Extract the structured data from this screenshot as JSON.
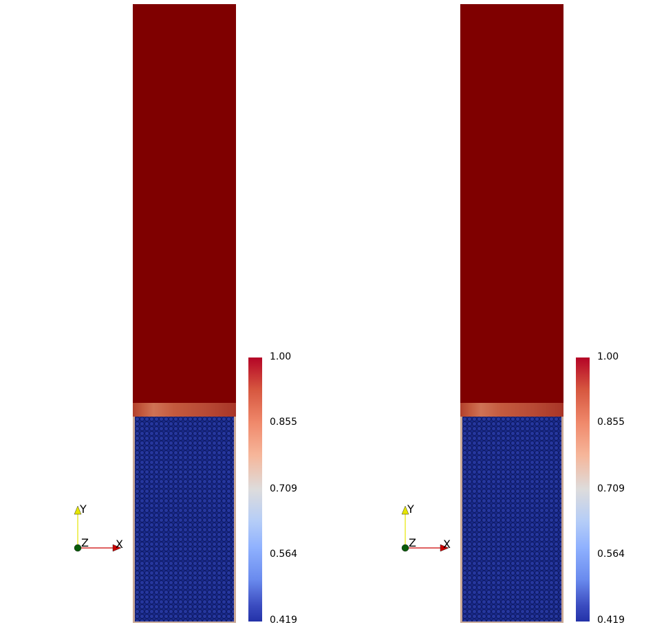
{
  "views": [
    {
      "id": "left",
      "scalar_bar": {
        "ticks": [
          "1.00",
          "0.855",
          "0.709",
          "0.564",
          "0.419"
        ],
        "max": 1.0,
        "min": 0.419
      },
      "axes": {
        "x": "X",
        "y": "Y",
        "z": "Z"
      }
    },
    {
      "id": "right",
      "scalar_bar": {
        "ticks": [
          "1.00",
          "0.855",
          "0.709",
          "0.564",
          "0.419"
        ],
        "max": 1.0,
        "min": 0.419
      },
      "axes": {
        "x": "X",
        "y": "Y",
        "z": "Z"
      }
    }
  ],
  "colors": {
    "fluid": "#7f0000",
    "particles": "#1a2a8a",
    "colormap_top": "#b40426",
    "colormap_mid": "#dddcdc",
    "colormap_bottom": "#2432a8"
  }
}
